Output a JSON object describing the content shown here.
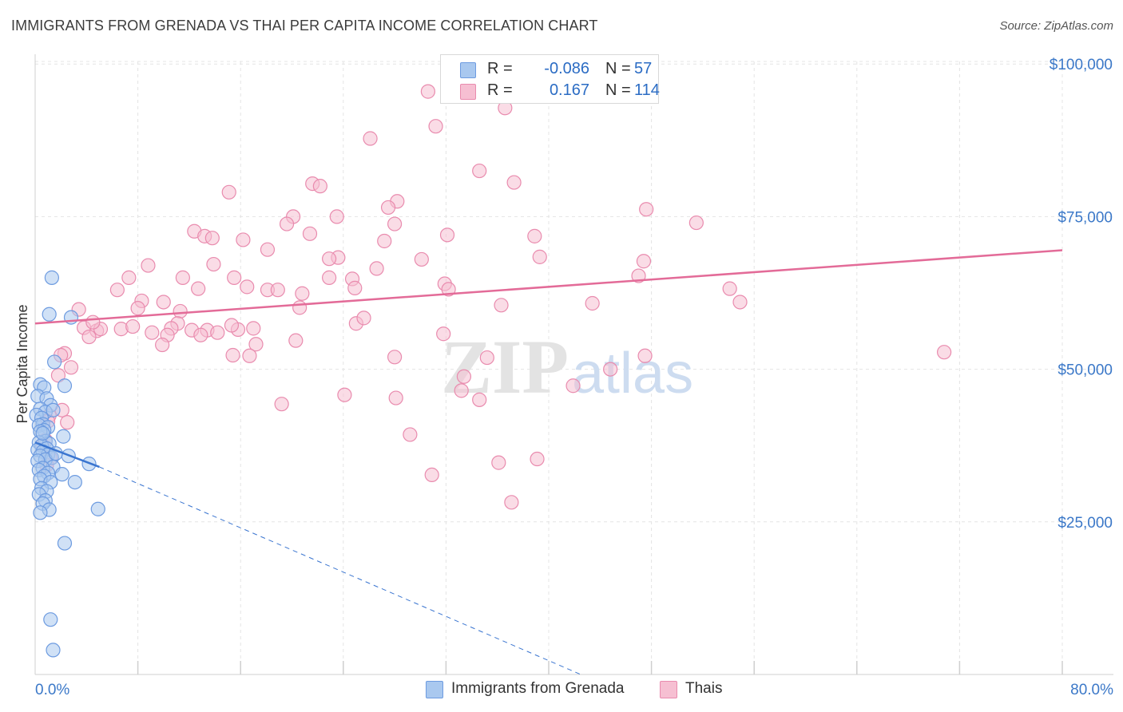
{
  "header": {
    "title": "IMMIGRANTS FROM GRENADA VS THAI PER CAPITA INCOME CORRELATION CHART",
    "source": "Source: ZipAtlas.com"
  },
  "watermark": {
    "part1": "ZIP",
    "part2": "atlas"
  },
  "legend": {
    "rows": [
      {
        "r_label": "R =",
        "r_value": "-0.086",
        "n_label": "N =",
        "n_value": "57"
      },
      {
        "r_label": "R =",
        "r_value": "0.167",
        "n_label": "N =",
        "n_value": "114"
      }
    ]
  },
  "bottom_legend": [
    "Immigrants from Grenada",
    "Thais"
  ],
  "colors": {
    "blue_fill": "#a9c8ef",
    "blue_stroke": "#6d9be0",
    "blue_line": "#3a75d0",
    "pink_fill": "#f6bfd2",
    "pink_stroke": "#e98bae",
    "pink_line": "#e36b98",
    "tick_text": "#3b78c8"
  },
  "chart_data": {
    "type": "scatter",
    "title": "IMMIGRANTS FROM GRENADA VS THAI PER CAPITA INCOME CORRELATION CHART",
    "xlabel": "",
    "ylabel": "Per Capita Income",
    "xlim": [
      0,
      80
    ],
    "ylim": [
      0,
      105000
    ],
    "x_tick_labels": [
      "0.0%",
      "80.0%"
    ],
    "y_ticks": [
      25000,
      50000,
      75000,
      100000
    ],
    "y_tick_labels": [
      "$25,000",
      "$50,000",
      "$75,000",
      "$100,000"
    ],
    "grid": true,
    "legend_position": "top-center",
    "series": [
      {
        "name": "Immigrants from Grenada",
        "R": -0.086,
        "N": 57,
        "trend_solid": {
          "x": [
            0.0,
            5.0
          ],
          "y": [
            38000,
            34000
          ]
        },
        "trend_dashed": {
          "x": [
            5.0,
            42.5
          ],
          "y": [
            34000,
            0
          ]
        },
        "points": [
          [
            1.3,
            65000
          ],
          [
            1.1,
            59000
          ],
          [
            2.8,
            58500
          ],
          [
            1.5,
            51200
          ],
          [
            2.3,
            47300
          ],
          [
            0.4,
            47500
          ],
          [
            0.7,
            47000
          ],
          [
            0.2,
            45600
          ],
          [
            0.9,
            45200
          ],
          [
            1.2,
            44100
          ],
          [
            0.4,
            43500
          ],
          [
            0.8,
            43000
          ],
          [
            1.4,
            43300
          ],
          [
            0.1,
            42500
          ],
          [
            0.5,
            42000
          ],
          [
            0.6,
            41000
          ],
          [
            0.3,
            40800
          ],
          [
            1.0,
            40500
          ],
          [
            0.7,
            40000
          ],
          [
            0.4,
            39800
          ],
          [
            2.2,
            39000
          ],
          [
            0.8,
            38200
          ],
          [
            0.3,
            38000
          ],
          [
            1.1,
            37800
          ],
          [
            0.5,
            37500
          ],
          [
            0.9,
            37000
          ],
          [
            0.2,
            36800
          ],
          [
            0.6,
            36500
          ],
          [
            1.0,
            36000
          ],
          [
            0.4,
            35800
          ],
          [
            2.6,
            35800
          ],
          [
            1.3,
            35500
          ],
          [
            0.8,
            35200
          ],
          [
            0.2,
            35000
          ],
          [
            1.4,
            34000
          ],
          [
            4.2,
            34500
          ],
          [
            0.6,
            33800
          ],
          [
            0.3,
            33500
          ],
          [
            1.0,
            33000
          ],
          [
            2.1,
            32800
          ],
          [
            0.7,
            32500
          ],
          [
            0.4,
            32000
          ],
          [
            1.2,
            31500
          ],
          [
            3.1,
            31500
          ],
          [
            0.5,
            30500
          ],
          [
            0.9,
            30000
          ],
          [
            0.3,
            29500
          ],
          [
            0.8,
            28500
          ],
          [
            0.6,
            28000
          ],
          [
            1.1,
            27000
          ],
          [
            4.9,
            27100
          ],
          [
            0.4,
            26500
          ],
          [
            2.3,
            21500
          ],
          [
            1.2,
            9000
          ],
          [
            1.4,
            4000
          ],
          [
            0.6,
            39500
          ],
          [
            1.6,
            36200
          ]
        ]
      },
      {
        "name": "Thais",
        "R": 0.167,
        "N": 114,
        "trend_solid": {
          "x": [
            0.0,
            80.0
          ],
          "y": [
            57500,
            69500
          ]
        },
        "points": [
          [
            30.6,
            95500
          ],
          [
            36.6,
            92800
          ],
          [
            31.2,
            89800
          ],
          [
            26.1,
            87800
          ],
          [
            34.6,
            82500
          ],
          [
            37.3,
            80600
          ],
          [
            21.6,
            80400
          ],
          [
            22.2,
            80000
          ],
          [
            15.1,
            79000
          ],
          [
            28.2,
            77500
          ],
          [
            47.6,
            76200
          ],
          [
            27.5,
            76500
          ],
          [
            20.1,
            75000
          ],
          [
            23.5,
            75000
          ],
          [
            51.5,
            74000
          ],
          [
            19.6,
            73800
          ],
          [
            28.0,
            73800
          ],
          [
            12.4,
            72600
          ],
          [
            21.4,
            72200
          ],
          [
            32.1,
            72000
          ],
          [
            38.9,
            71800
          ],
          [
            13.2,
            71800
          ],
          [
            13.8,
            71500
          ],
          [
            16.2,
            71200
          ],
          [
            27.2,
            71000
          ],
          [
            18.1,
            69600
          ],
          [
            39.3,
            68400
          ],
          [
            23.6,
            68300
          ],
          [
            22.9,
            68100
          ],
          [
            30.1,
            68000
          ],
          [
            47.4,
            67700
          ],
          [
            8.8,
            67000
          ],
          [
            13.9,
            67200
          ],
          [
            26.6,
            66500
          ],
          [
            7.3,
            65000
          ],
          [
            11.5,
            65000
          ],
          [
            15.5,
            65000
          ],
          [
            22.9,
            65000
          ],
          [
            24.7,
            64800
          ],
          [
            47.0,
            65300
          ],
          [
            31.9,
            64000
          ],
          [
            16.5,
            63500
          ],
          [
            6.4,
            63000
          ],
          [
            18.1,
            63000
          ],
          [
            18.9,
            63000
          ],
          [
            32.2,
            63100
          ],
          [
            12.7,
            63200
          ],
          [
            24.9,
            63300
          ],
          [
            54.1,
            63200
          ],
          [
            20.8,
            62400
          ],
          [
            8.3,
            61200
          ],
          [
            10.0,
            61000
          ],
          [
            54.9,
            61000
          ],
          [
            36.3,
            60500
          ],
          [
            43.4,
            60800
          ],
          [
            20.6,
            60100
          ],
          [
            3.4,
            59800
          ],
          [
            11.3,
            59500
          ],
          [
            8.0,
            60000
          ],
          [
            11.1,
            57500
          ],
          [
            25.0,
            57500
          ],
          [
            25.6,
            58400
          ],
          [
            3.8,
            56800
          ],
          [
            4.8,
            56300
          ],
          [
            5.1,
            56600
          ],
          [
            6.7,
            56600
          ],
          [
            7.6,
            57000
          ],
          [
            9.1,
            56000
          ],
          [
            4.5,
            57700
          ],
          [
            10.6,
            56700
          ],
          [
            12.2,
            56400
          ],
          [
            13.4,
            56400
          ],
          [
            15.8,
            56500
          ],
          [
            17.0,
            56700
          ],
          [
            4.2,
            55300
          ],
          [
            10.3,
            55600
          ],
          [
            12.9,
            55600
          ],
          [
            14.2,
            56000
          ],
          [
            15.3,
            57200
          ],
          [
            31.8,
            55800
          ],
          [
            9.9,
            54000
          ],
          [
            17.2,
            54100
          ],
          [
            20.3,
            54700
          ],
          [
            2.3,
            52600
          ],
          [
            2.0,
            52300
          ],
          [
            15.4,
            52300
          ],
          [
            16.7,
            52200
          ],
          [
            28.0,
            52000
          ],
          [
            35.2,
            51900
          ],
          [
            47.5,
            52200
          ],
          [
            70.8,
            52800
          ],
          [
            2.8,
            50300
          ],
          [
            44.8,
            50000
          ],
          [
            1.8,
            49000
          ],
          [
            33.4,
            48800
          ],
          [
            41.9,
            47300
          ],
          [
            33.2,
            46500
          ],
          [
            24.1,
            45800
          ],
          [
            28.1,
            45300
          ],
          [
            34.6,
            45000
          ],
          [
            19.2,
            44300
          ],
          [
            2.1,
            43300
          ],
          [
            1.1,
            42400
          ],
          [
            1.0,
            41500
          ],
          [
            29.2,
            39300
          ],
          [
            0.8,
            38400
          ],
          [
            0.6,
            37500
          ],
          [
            36.1,
            34700
          ],
          [
            39.1,
            35300
          ],
          [
            30.9,
            32700
          ],
          [
            37.1,
            28200
          ],
          [
            1.2,
            35400
          ],
          [
            0.9,
            34300
          ],
          [
            2.5,
            41300
          ]
        ]
      }
    ]
  }
}
